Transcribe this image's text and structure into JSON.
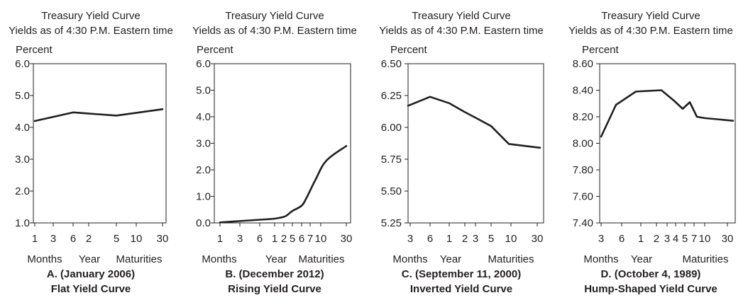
{
  "chart_data": [
    {
      "type": "line",
      "title": "Treasury Yield Curve",
      "subtitle": "Yields as of 4:30 P.M. Eastern time",
      "ylabel": "Percent",
      "ylim": [
        1.0,
        6.0
      ],
      "yticks": [
        "6.0",
        "5.0",
        "4.0",
        "3.0",
        "2.0",
        "1.0"
      ],
      "ytick_values": [
        6.0,
        5.0,
        4.0,
        3.0,
        2.0,
        1.0
      ],
      "xticks": [
        "1",
        "3",
        "6",
        "2",
        "5",
        "10",
        "30"
      ],
      "xcaptions": [
        "Months",
        "Year",
        "Maturities"
      ],
      "caption_line1": "A. (January 2006)",
      "caption_line2": "Flat Yield Curve",
      "x": [
        "1m",
        "6m",
        "5y",
        "30y"
      ],
      "y": [
        4.2,
        4.47,
        4.37,
        4.57
      ]
    },
    {
      "type": "line",
      "title": "Treasury Yield Curve",
      "subtitle": "Yields as of 4:30 P.M. Eastern time",
      "ylabel": "Percent",
      "ylim": [
        0.0,
        6.0
      ],
      "yticks": [
        "6.0",
        "5.0",
        "4.0",
        "3.0",
        "2.0",
        "1.0",
        "0.0"
      ],
      "ytick_values": [
        6.0,
        5.0,
        4.0,
        3.0,
        2.0,
        1.0,
        0.0
      ],
      "xticks": [
        "1",
        "3",
        "6",
        "1",
        "2",
        "5",
        "6",
        "7",
        "10",
        "30"
      ],
      "xcaptions": [
        "Months",
        "Year",
        "Maturities"
      ],
      "caption_line1": "B. (December 2012)",
      "caption_line2": "Rising Yield Curve",
      "x": [
        "1m",
        "3m",
        "6m",
        "1y",
        "2y",
        "3y",
        "5y",
        "6y",
        "7y",
        "10y",
        "20y",
        "30y"
      ],
      "y": [
        0.02,
        0.07,
        0.12,
        0.16,
        0.23,
        0.3,
        0.45,
        0.65,
        0.95,
        1.65,
        2.35,
        2.9
      ]
    },
    {
      "type": "line",
      "title": "Treasury Yield Curve",
      "subtitle": "Yields as of 4:30 P.M. Eastern time",
      "ylabel": "Percent",
      "ylim": [
        5.25,
        6.5
      ],
      "yticks": [
        "6.50",
        "6.25",
        "6.00",
        "5.75",
        "5.50",
        "5.25"
      ],
      "ytick_values": [
        6.5,
        6.25,
        6.0,
        5.75,
        5.5,
        5.25
      ],
      "xticks": [
        "3",
        "6",
        "1",
        "2",
        "3",
        "5",
        "10",
        "30"
      ],
      "xcaptions": [
        "Months",
        "Year",
        "Maturities"
      ],
      "caption_line1": "C. (September 11, 2000)",
      "caption_line2": "Inverted Yield Curve",
      "x": [
        "3m",
        "6m",
        "1y",
        "2y",
        "3y",
        "5y",
        "10y",
        "30y"
      ],
      "y": [
        6.17,
        6.24,
        6.19,
        6.12,
        6.07,
        6.01,
        5.87,
        5.84
      ]
    },
    {
      "type": "line",
      "title": "Treasury Yield Curve",
      "subtitle": "Yields as of 4:30 P.M. Eastern time",
      "ylabel": "Percent",
      "ylim": [
        7.4,
        8.6
      ],
      "yticks": [
        "8.60",
        "8.40",
        "8.20",
        "8.00",
        "7.80",
        "7.60",
        "7.40"
      ],
      "ytick_values": [
        8.6,
        8.4,
        8.2,
        8.0,
        7.8,
        7.6,
        7.4
      ],
      "xticks": [
        "3",
        "6",
        "1",
        "2",
        "3",
        "4",
        "5",
        "7",
        "10",
        "30"
      ],
      "xcaptions": [
        "Months",
        "Year",
        "Maturities"
      ],
      "caption_line1": "D. (October 4, 1989)",
      "caption_line2": "Hump-Shaped Yield Curve",
      "x": [
        "3m",
        "6m",
        "1y",
        "2y",
        "3y",
        "4y",
        "5y",
        "7y",
        "10y",
        "30y"
      ],
      "y": [
        8.05,
        8.29,
        8.39,
        8.4,
        8.32,
        8.26,
        8.31,
        8.2,
        8.19,
        8.17
      ]
    }
  ]
}
